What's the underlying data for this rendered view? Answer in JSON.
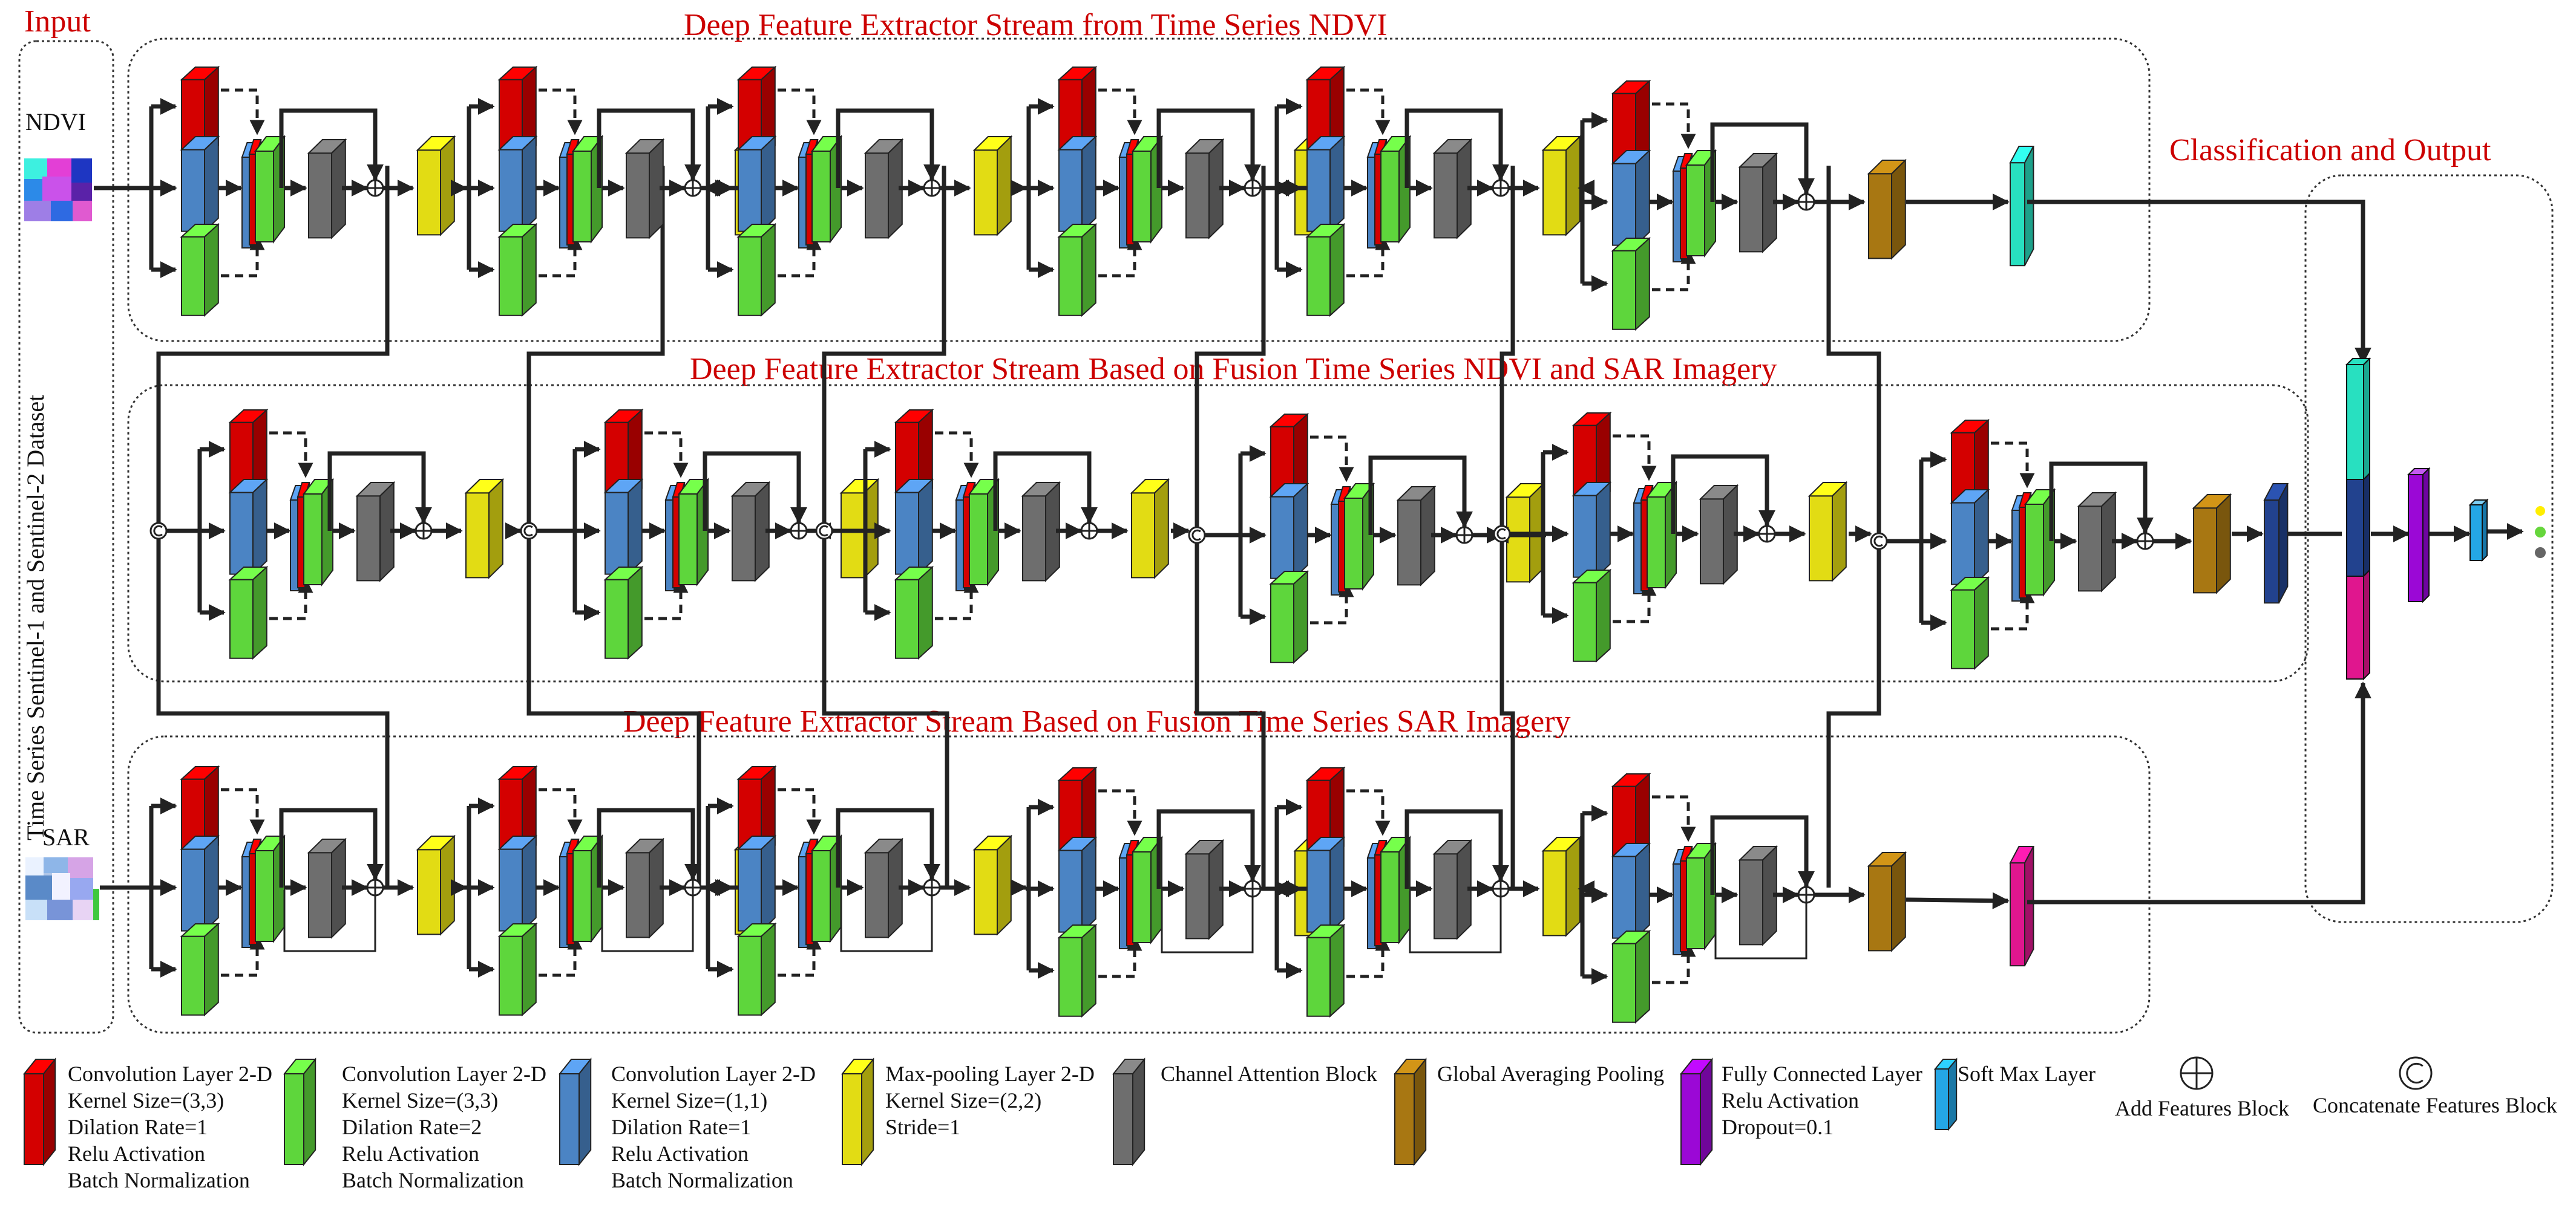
{
  "headings": {
    "input": "Input",
    "stream1": "Deep Feature Extractor Stream from Time Series NDVI",
    "stream2": "Deep Feature Extractor Stream Based on Fusion Time Series NDVI and SAR Imagery",
    "stream3": "Deep Feature Extractor Stream Based on Fusion Time Series SAR Imagery",
    "classification": "Classification and Output"
  },
  "input_panel": {
    "ndvi_label": "NDVI",
    "sar_label": "SAR",
    "dataset_label": "Time Series Sentinel-1 and Sentinel-2 Dataset"
  },
  "colors": {
    "conv_3x3_d1": "#d40000",
    "conv_3x3_d2": "#5ed63c",
    "conv_1x1": "#4b84c4",
    "max_pool": "#e2dc14",
    "channel_attention": "#6e6e6e",
    "global_avg_pool": "#a87712",
    "fully_connected": "#9b08d6",
    "softmax": "#24a7e6",
    "stream1_dense": "#28e0c0",
    "stream2_dense": "#22428e",
    "stream3_dense": "#e0168e",
    "heading_red": "#cc0000"
  },
  "legend": [
    {
      "lines": [
        "Convolution Layer 2-D",
        "Kernel Size=(3,3)",
        "Dilation Rate=1",
        "Relu Activation",
        "Batch Normalization"
      ]
    },
    {
      "lines": [
        "Convolution Layer 2-D",
        "Kernel Size=(3,3)",
        "Dilation Rate=2",
        "Relu Activation",
        "Batch Normalization"
      ]
    },
    {
      "lines": [
        "Convolution Layer 2-D",
        "Kernel Size=(1,1)",
        "Dilation Rate=1",
        "Relu Activation",
        "Batch Normalization"
      ]
    },
    {
      "lines": [
        "Max-pooling Layer 2-D",
        "Kernel Size=(2,2)",
        "Stride=1"
      ]
    },
    {
      "lines": [
        "Channel Attention Block"
      ]
    },
    {
      "lines": [
        "Global Averaging Pooling"
      ]
    },
    {
      "lines": [
        "Fully Connected Layer",
        "Relu Activation",
        "Dropout=0.1"
      ]
    },
    {
      "lines": [
        "Soft Max Layer"
      ]
    },
    {
      "lines": [
        "Add Features Block"
      ]
    },
    {
      "lines": [
        "Concatenate Features Block"
      ]
    }
  ],
  "legend_symbols": {
    "add": "⊕",
    "concat": "C"
  }
}
